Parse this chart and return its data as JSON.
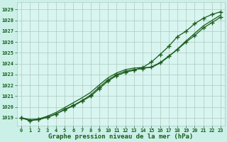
{
  "title": "Graphe pression niveau de la mer (hPa)",
  "bg_color": "#caf0e8",
  "plot_bg_color": "#d8f5f0",
  "grid_color": "#b0c8c0",
  "line_color": "#1a5c1a",
  "xlim": [
    -0.5,
    23.5
  ],
  "ylim": [
    1018.3,
    1029.7
  ],
  "yticks": [
    1019,
    1020,
    1021,
    1022,
    1023,
    1024,
    1025,
    1026,
    1027,
    1028,
    1029
  ],
  "xticks": [
    0,
    1,
    2,
    3,
    4,
    5,
    6,
    7,
    8,
    9,
    10,
    11,
    12,
    13,
    14,
    15,
    16,
    17,
    18,
    19,
    20,
    21,
    22,
    23
  ],
  "line1_smooth": [
    1019.0,
    1018.85,
    1018.9,
    1019.15,
    1019.5,
    1019.95,
    1020.4,
    1020.85,
    1021.35,
    1022.05,
    1022.7,
    1023.15,
    1023.45,
    1023.6,
    1023.65,
    1023.65,
    1024.05,
    1024.65,
    1025.35,
    1026.1,
    1026.8,
    1027.5,
    1028.0,
    1028.5
  ],
  "line2_markers": [
    1019.0,
    1018.75,
    1018.85,
    1019.05,
    1019.35,
    1019.8,
    1020.15,
    1020.6,
    1021.1,
    1021.85,
    1022.5,
    1023.0,
    1023.3,
    1023.45,
    1023.55,
    1023.7,
    1024.1,
    1024.7,
    1025.3,
    1026.0,
    1026.6,
    1027.3,
    1027.8,
    1028.3
  ],
  "line3_markers": [
    1019.0,
    1018.75,
    1018.85,
    1019.05,
    1019.35,
    1019.75,
    1020.1,
    1020.55,
    1021.0,
    1021.7,
    1022.4,
    1022.9,
    1023.2,
    1023.4,
    1023.65,
    1024.15,
    1024.85,
    1025.6,
    1026.5,
    1027.0,
    1027.7,
    1028.2,
    1028.55,
    1028.8
  ]
}
